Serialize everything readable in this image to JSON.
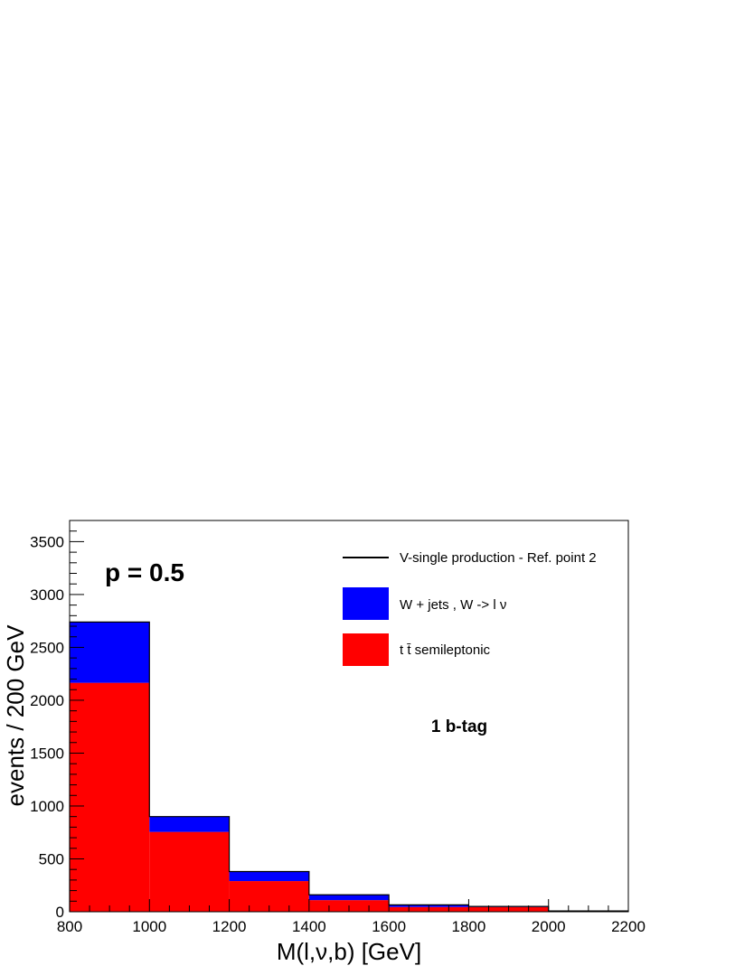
{
  "chart_data": {
    "type": "bar",
    "stacked": true,
    "xlabel": "M(l,ν,b) [GeV]",
    "ylabel": "events / 200 GeV",
    "xlim": [
      800,
      2200
    ],
    "ylim": [
      0,
      3700
    ],
    "bin_edges": [
      800,
      1000,
      1200,
      1400,
      1600,
      1800,
      2000,
      2200
    ],
    "x_ticks": [
      800,
      1000,
      1200,
      1400,
      1600,
      1800,
      2000,
      2200
    ],
    "x_tick_labels": [
      "800",
      "1000",
      "1200",
      "1400",
      "1600",
      "1800",
      "2000",
      "2200"
    ],
    "y_ticks": [
      0,
      500,
      1000,
      1500,
      2000,
      2500,
      3000,
      3500
    ],
    "y_tick_labels": [
      "0",
      "500",
      "1000",
      "1500",
      "2000",
      "2500",
      "3000",
      "3500"
    ],
    "series": [
      {
        "name": "t t̄ semileptonic",
        "color": "#ff0000",
        "values": [
          2165,
          755,
          290,
          110,
          45,
          45,
          8
        ]
      },
      {
        "name": "W + jets , W -> l ν",
        "color": "#0000ff",
        "values": [
          575,
          145,
          90,
          50,
          20,
          5,
          0
        ]
      },
      {
        "name": "V-single production - Ref. point 2",
        "color": "#000000",
        "style": "line",
        "values": [
          0,
          0,
          0,
          0,
          0,
          0,
          0
        ]
      }
    ],
    "legend_placement": "top-right",
    "annotations": [
      "p = 0.5",
      "1 b-tag"
    ],
    "grid": false
  }
}
